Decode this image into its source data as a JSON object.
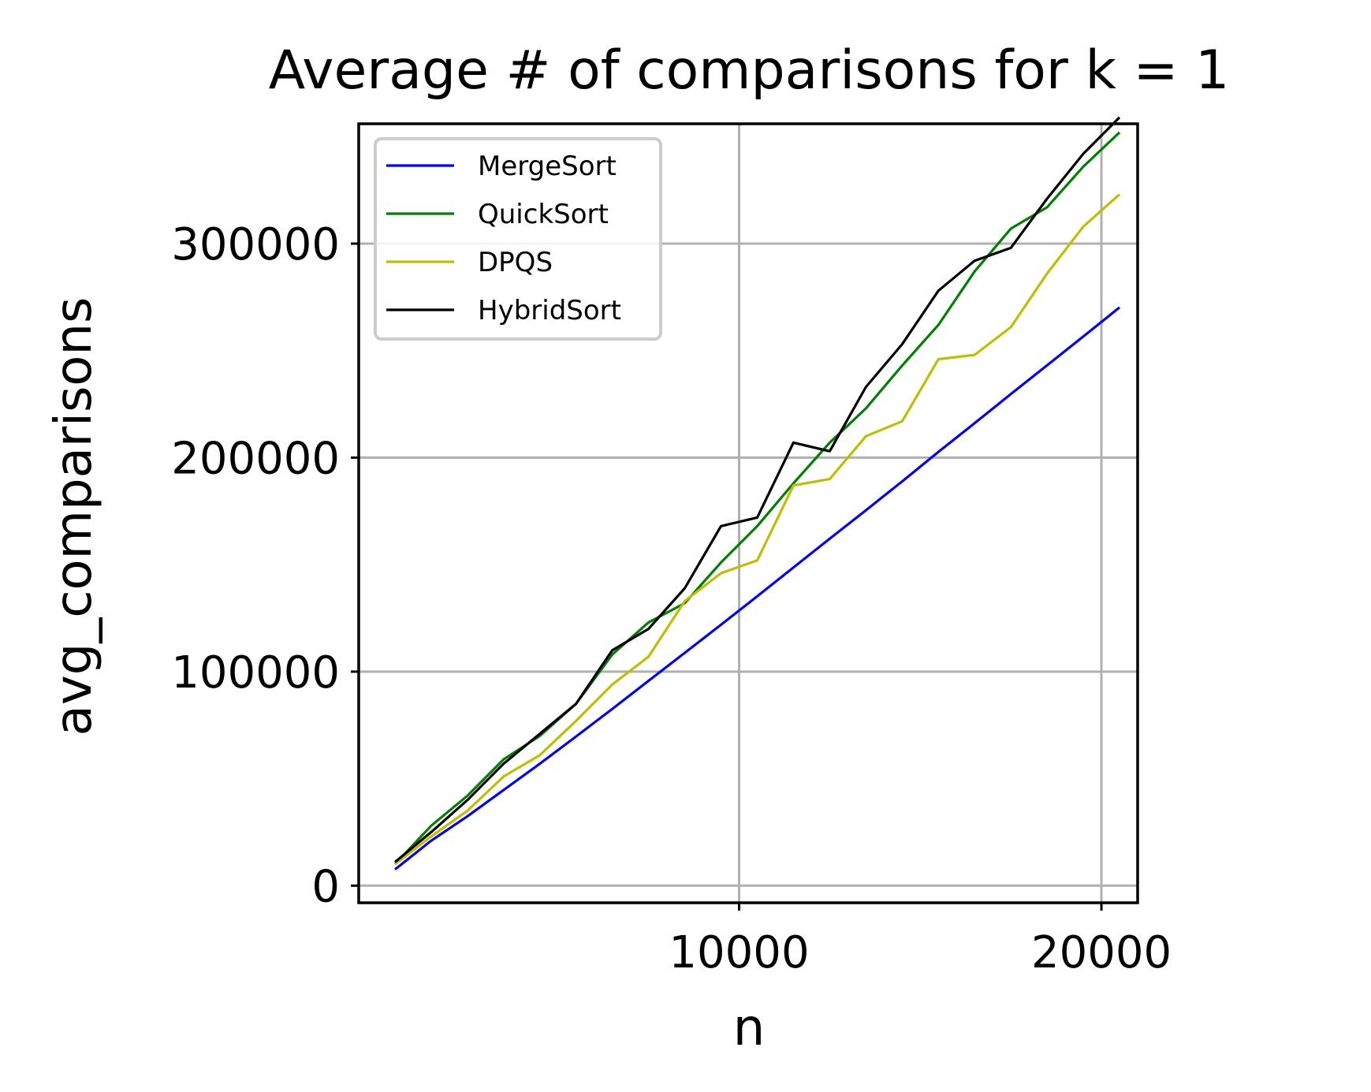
{
  "chart_data": {
    "type": "line",
    "title": "Average # of comparisons for k = 1",
    "xlabel": "n",
    "ylabel": "avg_comparisons",
    "xlim": [
      -500,
      21000
    ],
    "ylim": [
      -8000,
      356000
    ],
    "xticks": [
      10000,
      20000
    ],
    "xtick_labels": [
      "10000",
      "20000"
    ],
    "yticks": [
      0,
      100000,
      200000,
      300000
    ],
    "ytick_labels": [
      "0",
      "100000",
      "200000",
      "300000"
    ],
    "grid": true,
    "legend_position": "upper-left",
    "x": [
      500,
      1500,
      2500,
      3500,
      4500,
      5500,
      6500,
      7500,
      8500,
      9500,
      10500,
      11500,
      12500,
      13500,
      14500,
      15500,
      16500,
      17500,
      18500,
      19500,
      20500
    ],
    "series": [
      {
        "name": "MergeSort",
        "color": "#0000ff",
        "values": [
          7600,
          21000,
          32400,
          44700,
          57000,
          69700,
          82600,
          95700,
          108800,
          121900,
          135200,
          148700,
          162100,
          175400,
          188900,
          202700,
          216100,
          229700,
          243100,
          256600,
          270200
        ]
      },
      {
        "name": "QuickSort",
        "color": "#008000",
        "values": [
          10000,
          28000,
          42000,
          59000,
          70000,
          85000,
          108000,
          123000,
          132000,
          151000,
          168000,
          188000,
          207000,
          223000,
          243000,
          262000,
          287000,
          307000,
          317000,
          336000,
          352000
        ]
      },
      {
        "name": "DPQS",
        "color": "#bfbf00",
        "values": [
          10000,
          23000,
          35000,
          51000,
          61000,
          77000,
          94000,
          107000,
          133000,
          146000,
          152000,
          187000,
          190000,
          210000,
          217000,
          246000,
          248000,
          261000,
          286000,
          308000,
          323000
        ]
      },
      {
        "name": "HybridSort",
        "color": "#000000",
        "values": [
          11000,
          25000,
          40000,
          57000,
          71000,
          85000,
          110000,
          120000,
          139000,
          168000,
          172000,
          207000,
          203000,
          233000,
          253000,
          278000,
          292000,
          298000,
          321000,
          342000,
          359000
        ]
      }
    ]
  }
}
